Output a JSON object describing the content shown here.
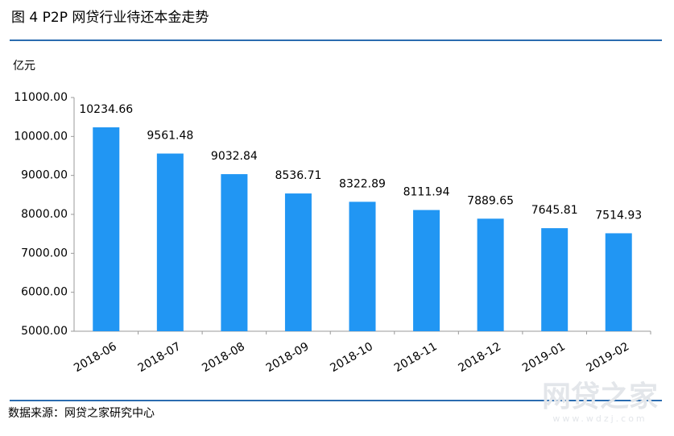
{
  "chart_data": {
    "type": "bar",
    "title": "图 4   P2P 网贷行业待还本金走势",
    "y_label": "亿元",
    "source": "数据来源：网贷之家研究中心",
    "watermark": "网贷之家",
    "watermark_url": "www.wdzj.com",
    "categories": [
      "2018-06",
      "2018-07",
      "2018-08",
      "2018-09",
      "2018-10",
      "2018-11",
      "2018-12",
      "2019-01",
      "2019-02"
    ],
    "values": [
      10234.66,
      9561.48,
      9032.84,
      8536.71,
      8322.89,
      8111.94,
      7889.65,
      7645.81,
      7514.93
    ],
    "color": "#2196f3",
    "ylim": [
      5000,
      11000
    ],
    "yticks": [
      {
        "value": 5000,
        "label": "5000.00"
      },
      {
        "value": 6000,
        "label": "6000.00"
      },
      {
        "value": 7000,
        "label": "7000.00"
      },
      {
        "value": 8000,
        "label": "8000.00"
      },
      {
        "value": 9000,
        "label": "9000.00"
      },
      {
        "value": 10000,
        "label": "10000.00"
      },
      {
        "value": 11000,
        "label": "11000.00"
      }
    ],
    "grid": false
  }
}
